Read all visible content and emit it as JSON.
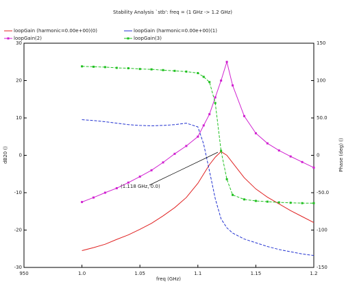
{
  "chart_data": {
    "type": "line",
    "title": "Stability Analysis `stb': freq = (1 GHz -> 1.2 GHz)",
    "xlabel": "freq (GHz)",
    "ylabel": "dB20 ()",
    "y2label": "Phase (deg) ()",
    "annotation": "(1.118 GHz, 0.0)",
    "x": [
      1.0,
      1.01,
      1.02,
      1.03,
      1.04,
      1.05,
      1.06,
      1.07,
      1.08,
      1.09,
      1.1,
      1.105,
      1.11,
      1.115,
      1.12,
      1.125,
      1.13,
      1.14,
      1.15,
      1.16,
      1.17,
      1.18,
      1.19,
      1.2
    ],
    "xlim": [
      0.95,
      1.2
    ],
    "xticks": [
      {
        "value": 0.95,
        "label": "950"
      },
      {
        "value": 1.0,
        "label": "1.0"
      },
      1.05,
      1.1,
      1.15,
      1.2
    ],
    "ylim": [
      -30,
      30
    ],
    "yticks": [
      -30,
      -20,
      -10,
      0,
      10,
      20,
      30
    ],
    "y2lim": [
      -150,
      150
    ],
    "y2ticks": [
      -150,
      -100,
      {
        "value": -50,
        "label": "-50.0"
      },
      0,
      {
        "value": 50,
        "label": "50.0"
      },
      100,
      150
    ],
    "grid": false,
    "series": [
      {
        "name": "loopGain (harmonic=0.00e+00)(0)",
        "color": "#e02020",
        "marker": false,
        "values": [
          -25.5,
          -24.7,
          -23.8,
          -22.5,
          -21.3,
          -19.8,
          -18.2,
          -16.2,
          -14.0,
          -11.3,
          -7.5,
          -5.0,
          -2.5,
          -0.5,
          1.0,
          0.0,
          -2.0,
          -6.0,
          -9.0,
          -11.2,
          -13.0,
          -14.8,
          -16.4,
          -18.0
        ]
      },
      {
        "name": "loopGain (harmonic=0.00e+00)(1)",
        "color": "#2030d0",
        "marker": false,
        "axis": "y2",
        "dash": true,
        "values": [
          47.7,
          46.5,
          45,
          43,
          41,
          40,
          39.5,
          40,
          41,
          43,
          38,
          15,
          -21,
          -58,
          -85,
          -97,
          -104,
          -112,
          -117,
          -122,
          -126,
          -129,
          -132,
          -134
        ]
      },
      {
        "name": "loopGain(2)",
        "color": "#d020d0",
        "marker": true,
        "values": [
          -12.5,
          -11.3,
          -10.0,
          -8.8,
          -7.3,
          -5.7,
          -4.0,
          -1.9,
          0.4,
          2.5,
          5.0,
          8,
          11,
          15.5,
          20,
          25,
          18.7,
          10.5,
          5.9,
          3.2,
          1.3,
          -0.3,
          -1.8,
          -3.3
        ]
      },
      {
        "name": "loopGain(3)",
        "color": "#20c020",
        "marker": true,
        "axis": "y2",
        "dash": true,
        "values": [
          119,
          118.5,
          118,
          117,
          116.5,
          115.5,
          115,
          114,
          113,
          112,
          110,
          105,
          98,
          70,
          6,
          -32,
          -53,
          -59,
          -61,
          -62,
          -63,
          -63.5,
          -64,
          -64
        ]
      }
    ]
  }
}
